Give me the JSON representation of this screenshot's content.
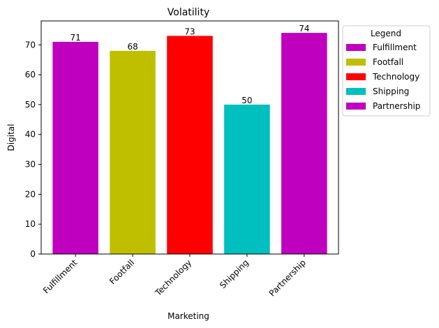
{
  "chart_data": {
    "type": "bar",
    "title": "Volatility",
    "xlabel": "Marketing",
    "ylabel": "Digital",
    "categories": [
      "Fulfillment",
      "Footfall",
      "Technology",
      "Shipping",
      "Partnership"
    ],
    "values": [
      71,
      68,
      73,
      50,
      74
    ],
    "colors": [
      "#bf00bf",
      "#bfbf00",
      "#ff0000",
      "#00bfbf",
      "#bf00bf"
    ],
    "ylim": [
      0,
      78
    ],
    "yticks": [
      0,
      10,
      20,
      30,
      40,
      50,
      60,
      70
    ],
    "grid": false,
    "legend": {
      "title": "Legend",
      "placement": "outside-right-top",
      "entries": [
        "Fulfillment",
        "Footfall",
        "Technology",
        "Shipping",
        "Partnership"
      ]
    }
  }
}
